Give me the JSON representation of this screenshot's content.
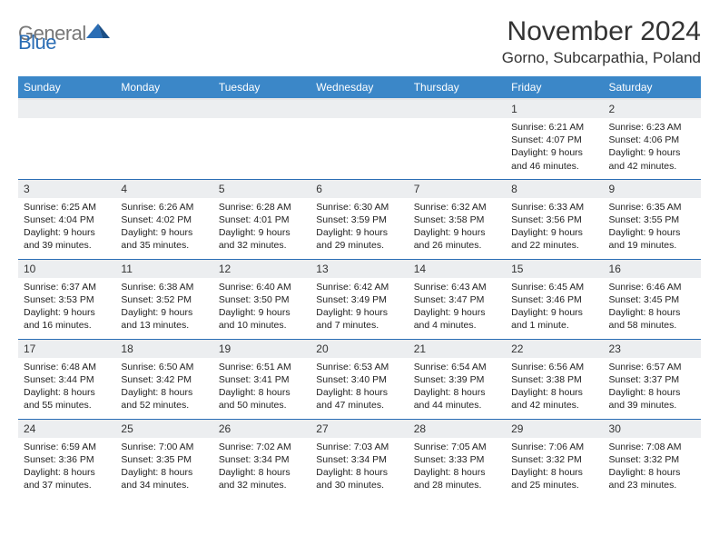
{
  "logo": {
    "gray": "General",
    "blue": "Blue"
  },
  "title": "November 2024",
  "location": "Gorno, Subcarpathia, Poland",
  "header_color": "#3b87c8",
  "rule_color": "#2a6db5",
  "daynum_bg": "#eceef0",
  "weekdays": [
    "Sunday",
    "Monday",
    "Tuesday",
    "Wednesday",
    "Thursday",
    "Friday",
    "Saturday"
  ],
  "first_weekday_index": 5,
  "days": [
    {
      "n": 1,
      "sunrise": "6:21 AM",
      "sunset": "4:07 PM",
      "daylight": "9 hours and 46 minutes."
    },
    {
      "n": 2,
      "sunrise": "6:23 AM",
      "sunset": "4:06 PM",
      "daylight": "9 hours and 42 minutes."
    },
    {
      "n": 3,
      "sunrise": "6:25 AM",
      "sunset": "4:04 PM",
      "daylight": "9 hours and 39 minutes."
    },
    {
      "n": 4,
      "sunrise": "6:26 AM",
      "sunset": "4:02 PM",
      "daylight": "9 hours and 35 minutes."
    },
    {
      "n": 5,
      "sunrise": "6:28 AM",
      "sunset": "4:01 PM",
      "daylight": "9 hours and 32 minutes."
    },
    {
      "n": 6,
      "sunrise": "6:30 AM",
      "sunset": "3:59 PM",
      "daylight": "9 hours and 29 minutes."
    },
    {
      "n": 7,
      "sunrise": "6:32 AM",
      "sunset": "3:58 PM",
      "daylight": "9 hours and 26 minutes."
    },
    {
      "n": 8,
      "sunrise": "6:33 AM",
      "sunset": "3:56 PM",
      "daylight": "9 hours and 22 minutes."
    },
    {
      "n": 9,
      "sunrise": "6:35 AM",
      "sunset": "3:55 PM",
      "daylight": "9 hours and 19 minutes."
    },
    {
      "n": 10,
      "sunrise": "6:37 AM",
      "sunset": "3:53 PM",
      "daylight": "9 hours and 16 minutes."
    },
    {
      "n": 11,
      "sunrise": "6:38 AM",
      "sunset": "3:52 PM",
      "daylight": "9 hours and 13 minutes."
    },
    {
      "n": 12,
      "sunrise": "6:40 AM",
      "sunset": "3:50 PM",
      "daylight": "9 hours and 10 minutes."
    },
    {
      "n": 13,
      "sunrise": "6:42 AM",
      "sunset": "3:49 PM",
      "daylight": "9 hours and 7 minutes."
    },
    {
      "n": 14,
      "sunrise": "6:43 AM",
      "sunset": "3:47 PM",
      "daylight": "9 hours and 4 minutes."
    },
    {
      "n": 15,
      "sunrise": "6:45 AM",
      "sunset": "3:46 PM",
      "daylight": "9 hours and 1 minute."
    },
    {
      "n": 16,
      "sunrise": "6:46 AM",
      "sunset": "3:45 PM",
      "daylight": "8 hours and 58 minutes."
    },
    {
      "n": 17,
      "sunrise": "6:48 AM",
      "sunset": "3:44 PM",
      "daylight": "8 hours and 55 minutes."
    },
    {
      "n": 18,
      "sunrise": "6:50 AM",
      "sunset": "3:42 PM",
      "daylight": "8 hours and 52 minutes."
    },
    {
      "n": 19,
      "sunrise": "6:51 AM",
      "sunset": "3:41 PM",
      "daylight": "8 hours and 50 minutes."
    },
    {
      "n": 20,
      "sunrise": "6:53 AM",
      "sunset": "3:40 PM",
      "daylight": "8 hours and 47 minutes."
    },
    {
      "n": 21,
      "sunrise": "6:54 AM",
      "sunset": "3:39 PM",
      "daylight": "8 hours and 44 minutes."
    },
    {
      "n": 22,
      "sunrise": "6:56 AM",
      "sunset": "3:38 PM",
      "daylight": "8 hours and 42 minutes."
    },
    {
      "n": 23,
      "sunrise": "6:57 AM",
      "sunset": "3:37 PM",
      "daylight": "8 hours and 39 minutes."
    },
    {
      "n": 24,
      "sunrise": "6:59 AM",
      "sunset": "3:36 PM",
      "daylight": "8 hours and 37 minutes."
    },
    {
      "n": 25,
      "sunrise": "7:00 AM",
      "sunset": "3:35 PM",
      "daylight": "8 hours and 34 minutes."
    },
    {
      "n": 26,
      "sunrise": "7:02 AM",
      "sunset": "3:34 PM",
      "daylight": "8 hours and 32 minutes."
    },
    {
      "n": 27,
      "sunrise": "7:03 AM",
      "sunset": "3:34 PM",
      "daylight": "8 hours and 30 minutes."
    },
    {
      "n": 28,
      "sunrise": "7:05 AM",
      "sunset": "3:33 PM",
      "daylight": "8 hours and 28 minutes."
    },
    {
      "n": 29,
      "sunrise": "7:06 AM",
      "sunset": "3:32 PM",
      "daylight": "8 hours and 25 minutes."
    },
    {
      "n": 30,
      "sunrise": "7:08 AM",
      "sunset": "3:32 PM",
      "daylight": "8 hours and 23 minutes."
    }
  ],
  "labels": {
    "sunrise": "Sunrise:",
    "sunset": "Sunset:",
    "daylight": "Daylight:"
  }
}
